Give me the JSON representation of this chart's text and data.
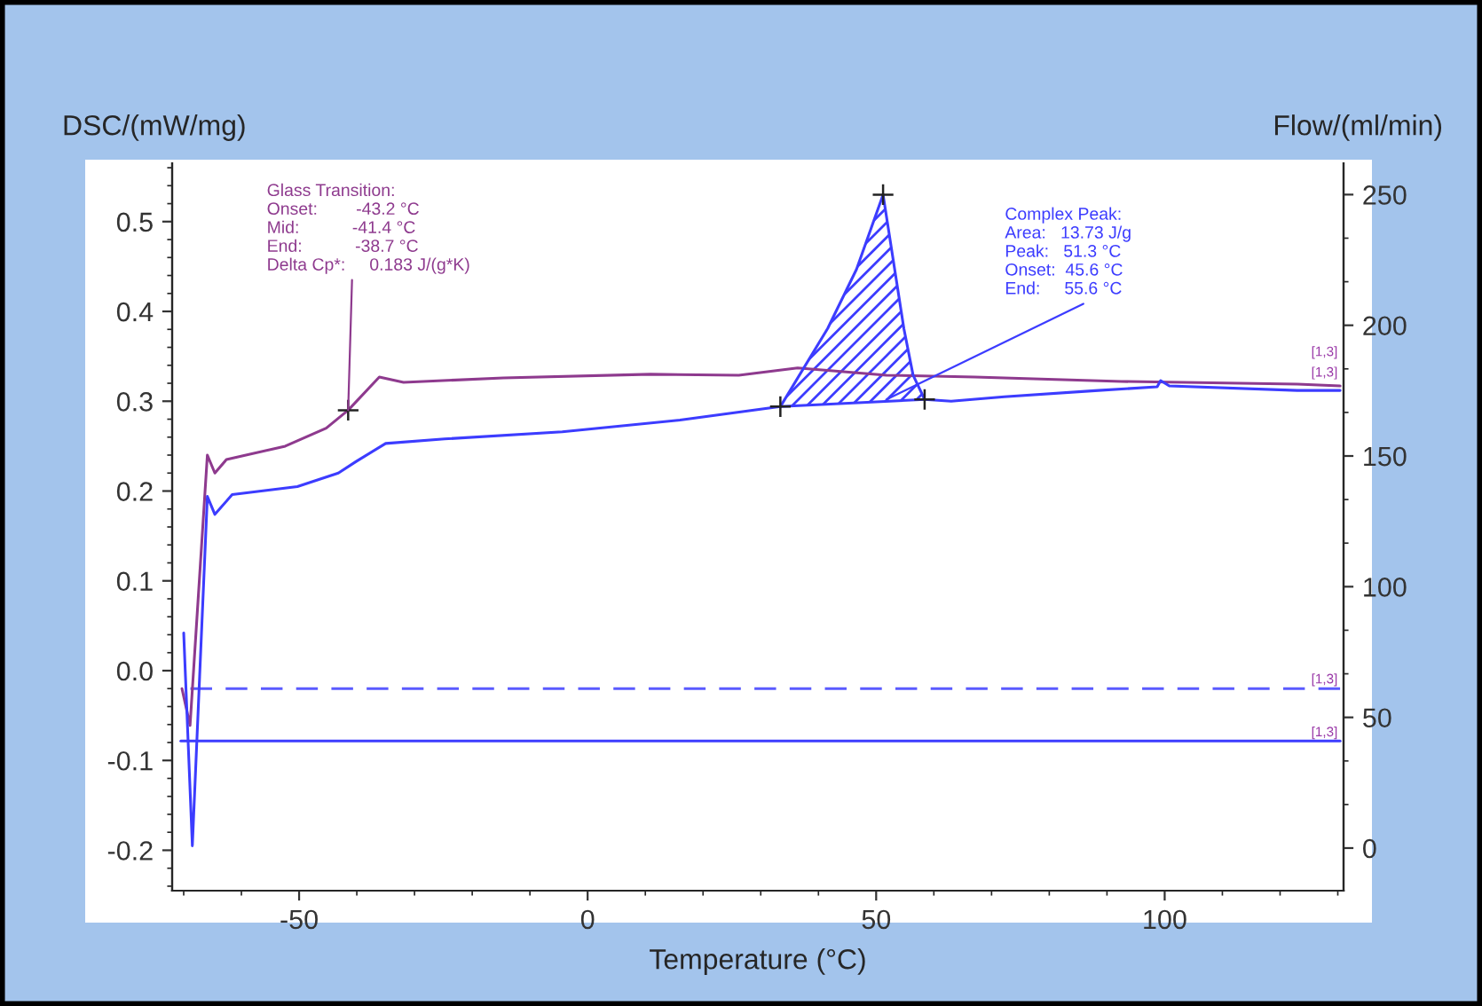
{
  "chart_data": {
    "type": "line",
    "xlabel": "Temperature (°C)",
    "ylabel": "DSC/(mW/mg)",
    "y2label": "Flow/(ml/min)",
    "xlim": [
      -72,
      131
    ],
    "xticks": [
      -50,
      0,
      50,
      100
    ],
    "ylim": [
      -0.245,
      0.565
    ],
    "yticks": [
      -0.2,
      -0.1,
      {
        "value": 0,
        "label": "0.0"
      },
      0.1,
      0.2,
      0.3,
      0.4,
      0.5
    ],
    "y2lim": [
      -16.3,
      262
    ],
    "y2ticks": [
      0,
      50,
      100,
      150,
      200,
      250
    ],
    "grid": false,
    "legend": false,
    "series": [
      {
        "type": "line",
        "color": "#8e3a8e",
        "line_style": "solid",
        "x": [
          -70.3,
          -68.9,
          -65.9,
          -64.6,
          -62.6,
          -52.4,
          -45.3,
          -41.5,
          -36.1,
          -31.9,
          -14.6,
          10.9,
          26.2,
          36.4,
          51.8,
          67.1,
          92.5,
          123,
          130.4
        ],
        "values": [
          -0.02,
          -0.061,
          0.24,
          0.22,
          0.235,
          0.25,
          0.27,
          0.29,
          0.327,
          0.321,
          0.326,
          0.33,
          0.329,
          0.337,
          0.329,
          0.327,
          0.322,
          0.319,
          0.317
        ]
      },
      {
        "type": "line",
        "color": "#3c3cff",
        "line_style": "solid",
        "x": [
          -70,
          -68.5,
          -65.9,
          -64.6,
          -61.6,
          -50.3,
          -43.2,
          -40.1,
          -35,
          -24.8,
          -4.4,
          16,
          33.4,
          41.6,
          46.6,
          51.2,
          54.8,
          56.4,
          58.4,
          63,
          72.2,
          88.5,
          98.7,
          99.3,
          100.8,
          123,
          130.4
        ],
        "values": [
          0.042,
          -0.195,
          0.194,
          0.174,
          0.196,
          0.205,
          0.22,
          0.233,
          0.253,
          0.258,
          0.266,
          0.279,
          0.294,
          0.381,
          0.447,
          0.53,
          0.381,
          0.329,
          0.302,
          0.3,
          0.305,
          0.312,
          0.316,
          0.323,
          0.317,
          0.312,
          0.312
        ]
      },
      {
        "color": "#3c3cff",
        "line_style": "solid",
        "x": [
          33.4,
          58.4
        ],
        "values": [
          0.294,
          0.302
        ]
      },
      {
        "type": "scatter",
        "color": "#222222",
        "marker": "cross",
        "x": [
          -41.5,
          33.4,
          51.2,
          58.4
        ],
        "values": [
          0.29,
          0.294,
          0.53,
          0.302
        ]
      },
      {
        "type": "line",
        "color": "#5a5aff",
        "line_style": "dashed",
        "axis": "y2",
        "x": [
          130.4,
          -70.5
        ],
        "values": [
          61,
          61
        ]
      },
      {
        "type": "line",
        "color": "#3c3cff",
        "line_style": "solid",
        "axis": "y2",
        "x": [
          -70.5,
          130.4
        ],
        "values": [
          41,
          41
        ]
      }
    ],
    "annotations": [
      {
        "text": "Glass Transition:\nOnset:        -43.2 °C\nMid:           -41.4 °C\nEnd:           -38.7 °C\nDelta Cp*:     0.183 J/(g*K)",
        "x": -41.5,
        "y": 0.29
      },
      {
        "text": "Complex Peak:\nArea:   13.73 J/g\nPeak:   51.3 °C\nOnset:  45.6 °C\nEnd:     55.6 °C",
        "x": 51.8,
        "y": 0.302
      },
      {
        "text": "[1,3]",
        "x": 130.4,
        "y": 0.317
      },
      {
        "text": "[1,3]",
        "x": 130.4,
        "y": 0.312
      },
      {
        "text": "[1,3]",
        "x": 130.4,
        "y": -0.02
      },
      {
        "text": "[1,3]",
        "x": 130.4,
        "y": -0.079
      }
    ]
  }
}
